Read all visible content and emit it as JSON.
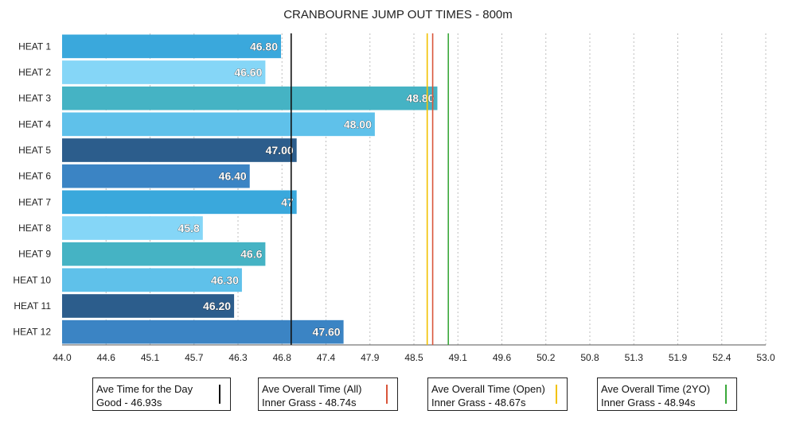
{
  "chart_data": {
    "type": "bar",
    "orientation": "horizontal",
    "title": "CRANBOURNE JUMP OUT TIMES - 800m",
    "categories": [
      "HEAT 1",
      "HEAT 2",
      "HEAT 3",
      "HEAT 4",
      "HEAT 5",
      "HEAT 6",
      "HEAT 7",
      "HEAT 8",
      "HEAT 9",
      "HEAT 10",
      "HEAT 11",
      "HEAT 12"
    ],
    "values": [
      46.8,
      46.6,
      48.8,
      48.0,
      47.0,
      46.4,
      47.0,
      45.8,
      46.6,
      46.3,
      46.2,
      47.6
    ],
    "value_labels": [
      "46.80",
      "46.60",
      "48.80",
      "48.00",
      "47.00",
      "46.40",
      "47",
      "45.8",
      "46.6",
      "46.30",
      "46.20",
      "47.60"
    ],
    "bar_colors": [
      "#3aa8dc",
      "#85d6f7",
      "#45b3c4",
      "#5fc1ea",
      "#2c5d8c",
      "#3b84c4",
      "#3aa8dc",
      "#85d6f7",
      "#45b3c4",
      "#5fc1ea",
      "#2c5d8c",
      "#3b84c4"
    ],
    "xlim": [
      44.0,
      53.0
    ],
    "xticks": [
      "44.0",
      "44.6",
      "45.1",
      "45.7",
      "46.3",
      "46.8",
      "47.4",
      "47.9",
      "48.5",
      "49.1",
      "49.6",
      "50.2",
      "50.8",
      "51.3",
      "51.9",
      "52.4",
      "53.0"
    ],
    "grid": true,
    "reference_lines": [
      {
        "value": 46.93,
        "color": "#111111"
      },
      {
        "value": 48.74,
        "color": "#d9553a"
      },
      {
        "value": 48.67,
        "color": "#f2c200"
      },
      {
        "value": 48.94,
        "color": "#3aa83a"
      }
    ]
  },
  "legend": [
    {
      "line1": "Ave Time for the Day",
      "line2": "Good - 46.93s",
      "color": "#111111"
    },
    {
      "line1": "Ave Overall Time (All)",
      "line2": "Inner Grass - 48.74s",
      "color": "#d9553a"
    },
    {
      "line1": "Ave Overall Time (Open)",
      "line2": "Inner Grass - 48.67s",
      "color": "#f2c200"
    },
    {
      "line1": "Ave Overall Time (2YO)",
      "line2": "Inner Grass - 48.94s",
      "color": "#3aa83a"
    }
  ]
}
